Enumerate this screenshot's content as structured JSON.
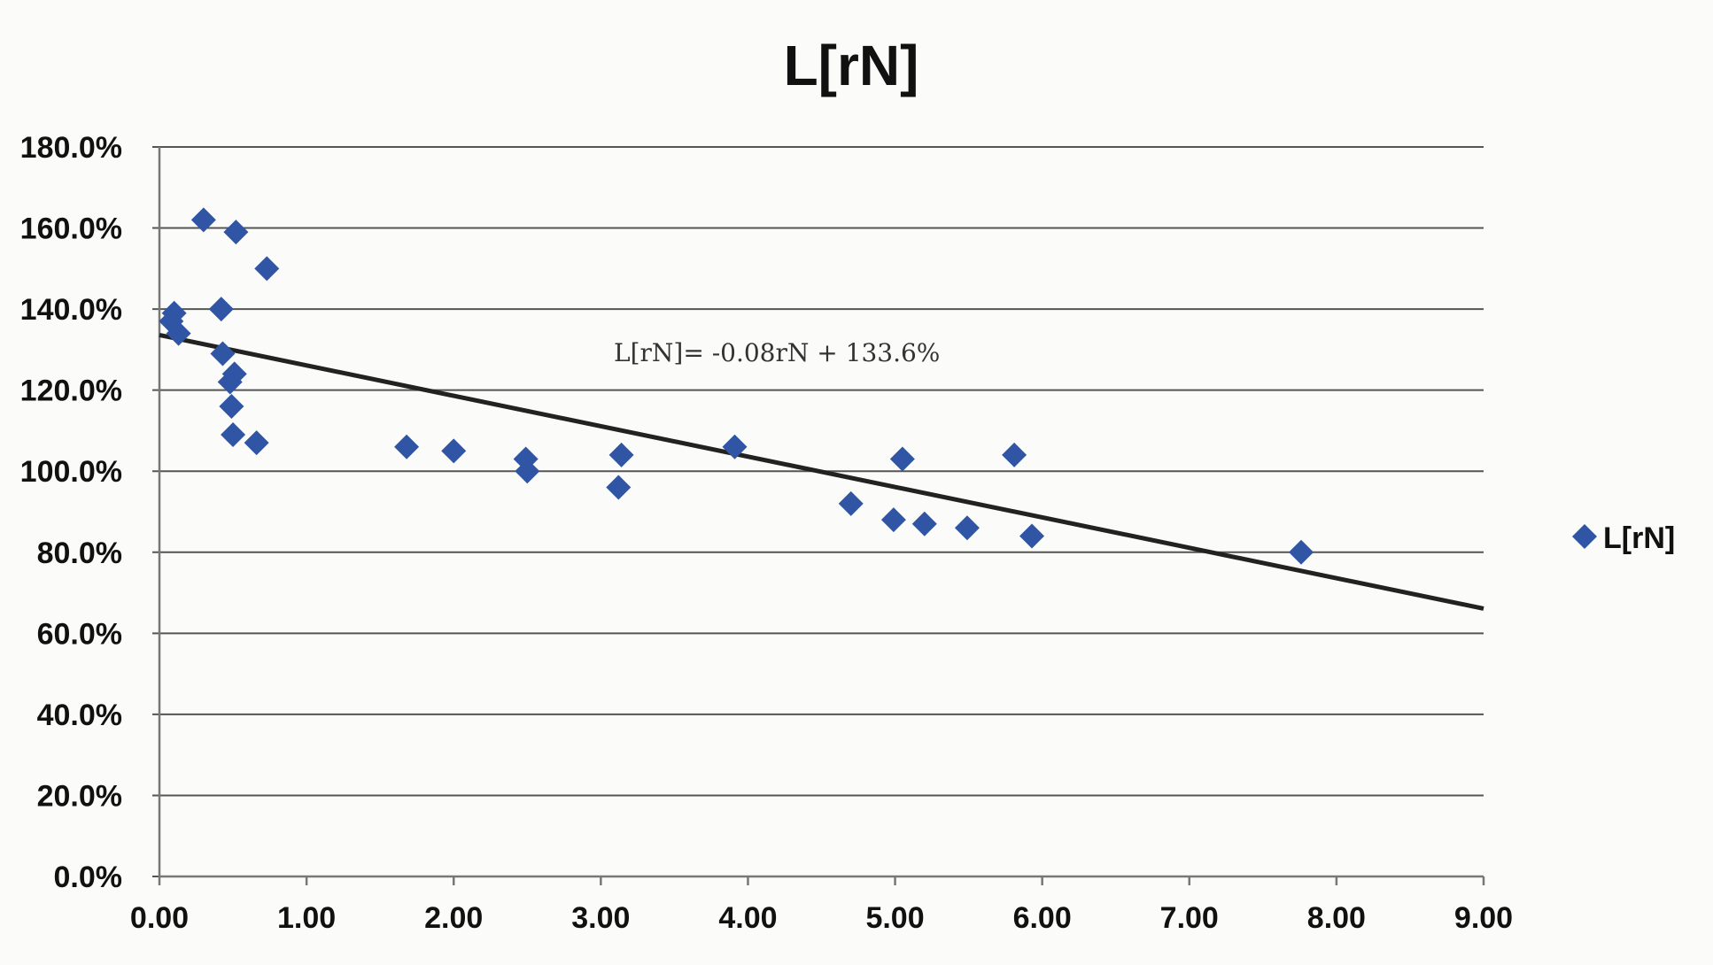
{
  "chart_data": {
    "type": "scatter",
    "title": "L[rN]",
    "xlabel": "",
    "ylabel": "",
    "xlim": [
      0,
      9
    ],
    "ylim": [
      0,
      1.8
    ],
    "x_ticks": [
      "0.00",
      "1.00",
      "2.00",
      "3.00",
      "4.00",
      "5.00",
      "6.00",
      "7.00",
      "8.00",
      "9.00"
    ],
    "y_ticks": [
      "0.0%",
      "20.0%",
      "40.0%",
      "60.0%",
      "80.0%",
      "100.0%",
      "120.0%",
      "140.0%",
      "160.0%",
      "180.0%"
    ],
    "grid": true,
    "legend": {
      "position": "right",
      "entries": [
        "L[rN]"
      ]
    },
    "series": [
      {
        "name": "L[rN]",
        "marker": "diamond",
        "color": "#2f55a4",
        "x": [
          0.08,
          0.1,
          0.13,
          0.3,
          0.42,
          0.43,
          0.48,
          0.49,
          0.5,
          0.51,
          0.52,
          0.66,
          0.73,
          1.68,
          2.0,
          2.49,
          2.5,
          3.12,
          3.14,
          3.91,
          4.7,
          4.99,
          5.05,
          5.2,
          5.49,
          5.81,
          5.93,
          7.76
        ],
        "y": [
          1.37,
          1.39,
          1.34,
          1.62,
          1.4,
          1.29,
          1.22,
          1.16,
          1.09,
          1.24,
          1.59,
          1.07,
          1.5,
          1.06,
          1.05,
          1.03,
          1.0,
          0.96,
          1.04,
          1.06,
          0.92,
          0.88,
          1.03,
          0.87,
          0.86,
          1.04,
          0.84,
          0.8
        ]
      }
    ],
    "trendline": {
      "label": "L[rN]= -0.08rN + 133.6%",
      "slope": -0.075,
      "intercept": 1.336,
      "color": "#222222"
    }
  }
}
